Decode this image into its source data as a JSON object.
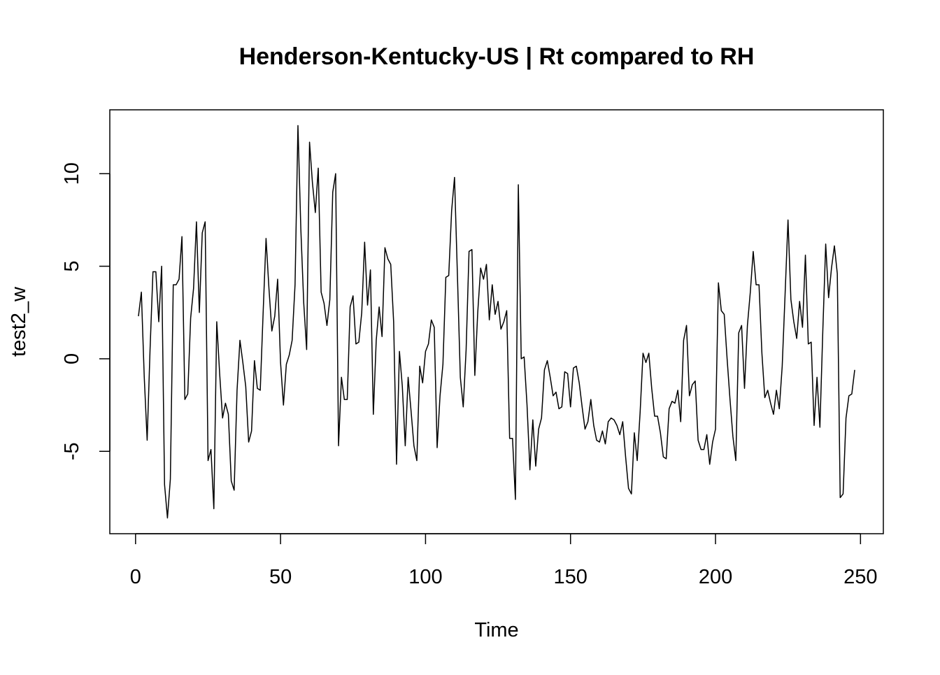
{
  "chart_data": {
    "type": "line",
    "title": "Henderson-Kentucky-US | Rt compared to RH",
    "x_label": "Time",
    "y_label": "test2_w",
    "color": "#000000",
    "x": [
      1,
      2,
      3,
      4,
      5,
      6,
      7,
      8,
      9,
      10,
      11,
      12,
      13,
      14,
      15,
      16,
      17,
      18,
      19,
      20,
      21,
      22,
      23,
      24,
      25,
      26,
      27,
      28,
      29,
      30,
      31,
      32,
      33,
      34,
      35,
      36,
      37,
      38,
      39,
      40,
      41,
      42,
      43,
      44,
      45,
      46,
      47,
      48,
      49,
      50,
      51,
      52,
      53,
      54,
      55,
      56,
      57,
      58,
      59,
      60,
      61,
      62,
      63,
      64,
      65,
      66,
      67,
      68,
      69,
      70,
      71,
      72,
      73,
      74,
      75,
      76,
      77,
      78,
      79,
      80,
      81,
      82,
      83,
      84,
      85,
      86,
      87,
      88,
      89,
      90,
      91,
      92,
      93,
      94,
      95,
      96,
      97,
      98,
      99,
      100,
      101,
      102,
      103,
      104,
      105,
      106,
      107,
      108,
      109,
      110,
      111,
      112,
      113,
      114,
      115,
      116,
      117,
      118,
      119,
      120,
      121,
      122,
      123,
      124,
      125,
      126,
      127,
      128,
      129,
      130,
      131,
      132,
      133,
      134,
      135,
      136,
      137,
      138,
      139,
      140,
      141,
      142,
      143,
      144,
      145,
      146,
      147,
      148,
      149,
      150,
      151,
      152,
      153,
      154,
      155,
      156,
      157,
      158,
      159,
      160,
      161,
      162,
      163,
      164,
      165,
      166,
      167,
      168,
      169,
      170,
      171,
      172,
      173,
      174,
      175,
      176,
      177,
      178,
      179,
      180,
      181,
      182,
      183,
      184,
      185,
      186,
      187,
      188,
      189,
      190,
      191,
      192,
      193,
      194,
      195,
      196,
      197,
      198,
      199,
      200,
      201,
      202,
      203,
      204,
      205,
      206,
      207,
      208,
      209,
      210,
      211,
      212,
      213,
      214,
      215,
      216,
      217,
      218,
      219,
      220,
      221,
      222,
      223,
      224,
      225,
      226,
      227,
      228,
      229,
      230,
      231,
      232,
      233,
      234,
      235,
      236,
      237,
      238,
      239,
      240,
      241,
      242,
      243,
      244,
      245,
      246,
      247,
      248
    ],
    "values": [
      2.3,
      3.6,
      -1,
      -4.4,
      0.5,
      4.7,
      4.7,
      2.0,
      5.0,
      -6.8,
      -8.6,
      -6.5,
      4.0,
      4.0,
      4.3,
      6.6,
      -2.2,
      -1.9,
      2.2,
      3.8,
      7.4,
      2.5,
      6.8,
      7.4,
      -5.5,
      -4.9,
      -8.1,
      2.0,
      -0.8,
      -3.2,
      -2.4,
      -3.0,
      -6.6,
      -7.1,
      -1.7,
      1.0,
      -0.2,
      -1.5,
      -4.5,
      -3.9,
      -0.1,
      -1.6,
      -1.7,
      2.5,
      6.5,
      3.8,
      1.5,
      2.3,
      4.3,
      -0.2,
      -2.5,
      -0.3,
      0.2,
      1.0,
      4.0,
      12.6,
      7.0,
      3.0,
      0.5,
      11.7,
      9.5,
      7.9,
      10.3,
      3.6,
      3.0,
      1.8,
      3.2,
      9.0,
      10.0,
      -4.7,
      -1.0,
      -2.2,
      -2.2,
      2.8,
      3.4,
      0.8,
      0.9,
      2.5,
      6.3,
      2.9,
      4.8,
      -3.0,
      1.0,
      2.8,
      1.2,
      6.0,
      5.4,
      5.1,
      2.0,
      -5.7,
      0.4,
      -1.5,
      -4.7,
      -1.0,
      -2.8,
      -4.7,
      -5.5,
      -0.4,
      -1.3,
      0.4,
      0.8,
      2.1,
      1.7,
      -4.8,
      -2.0,
      -0.3,
      4.4,
      4.5,
      8.0,
      9.8,
      4.5,
      -1.0,
      -2.6,
      0.5,
      5.8,
      5.9,
      -0.9,
      2.5,
      4.9,
      4.3,
      5.1,
      2.1,
      4.0,
      2.4,
      3.1,
      1.6,
      2.0,
      2.6,
      -4.3,
      -4.3,
      -7.6,
      9.4,
      0.0,
      0.1,
      -2.5,
      -6.0,
      -3.3,
      -5.8,
      -3.8,
      -3.2,
      -0.6,
      -0.1,
      -1.0,
      -2.0,
      -1.8,
      -2.7,
      -2.6,
      -0.7,
      -0.8,
      -2.6,
      -0.5,
      -0.4,
      -1.3,
      -2.6,
      -3.8,
      -3.4,
      -2.2,
      -3.6,
      -4.4,
      -4.5,
      -3.9,
      -4.6,
      -3.4,
      -3.2,
      -3.3,
      -3.6,
      -4.1,
      -3.4,
      -5.3,
      -7.0,
      -7.3,
      -4.0,
      -5.5,
      -2.9,
      0.3,
      -0.2,
      0.3,
      -1.6,
      -3.1,
      -3.1,
      -4.0,
      -5.3,
      -5.4,
      -2.7,
      -2.3,
      -2.4,
      -1.7,
      -3.4,
      1.0,
      1.8,
      -2.0,
      -1.4,
      -1.2,
      -4.4,
      -4.9,
      -4.9,
      -4.1,
      -5.7,
      -4.5,
      -3.8,
      4.1,
      2.6,
      2.4,
      0.0,
      -2.2,
      -4.2,
      -5.5,
      1.4,
      1.8,
      -1.6,
      1.8,
      3.6,
      5.8,
      4.0,
      4.0,
      0.3,
      -2.1,
      -1.7,
      -2.4,
      -3.0,
      -1.7,
      -2.7,
      -0.4,
      3.5,
      7.5,
      3.2,
      2.0,
      1.1,
      3.1,
      1.7,
      5.6,
      0.8,
      0.9,
      -3.6,
      -1.0,
      -3.7,
      1.5,
      6.2,
      3.3,
      4.9,
      6.1,
      4.6,
      -7.5,
      -7.3,
      -3.2,
      -2.0,
      -1.9,
      -0.6
    ],
    "xlim": [
      -8.88,
      257.88
    ],
    "xticks": [
      0,
      50,
      100,
      150,
      200,
      250
    ],
    "ylim": [
      -9.45,
      13.45
    ],
    "yticks": [
      -5,
      0,
      5,
      10
    ]
  }
}
